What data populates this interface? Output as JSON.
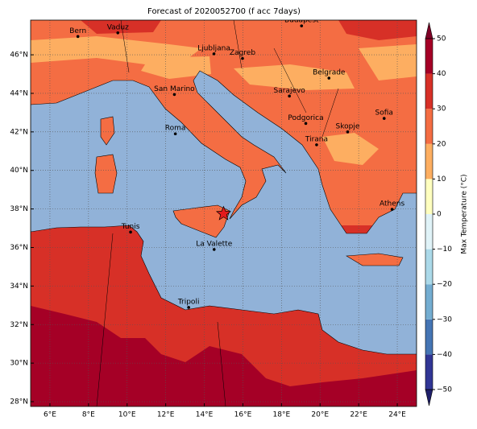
{
  "title": "Forecast of 2020052700 (f acc 7days)",
  "map": {
    "lonlim": [
      5,
      25
    ],
    "latlim": [
      27.75,
      47.8
    ],
    "lon_ticks": [
      {
        "value": 6,
        "label": "6°E"
      },
      {
        "value": 8,
        "label": "8°E"
      },
      {
        "value": 10,
        "label": "10°E"
      },
      {
        "value": 12,
        "label": "12°E"
      },
      {
        "value": 14,
        "label": "14°E"
      },
      {
        "value": 16,
        "label": "16°E"
      },
      {
        "value": 18,
        "label": "18°E"
      },
      {
        "value": 20,
        "label": "20°E"
      },
      {
        "value": 22,
        "label": "22°E"
      },
      {
        "value": 24,
        "label": "24°E"
      }
    ],
    "lat_ticks": [
      {
        "value": 28,
        "label": "28°N"
      },
      {
        "value": 30,
        "label": "30°N"
      },
      {
        "value": 32,
        "label": "32°N"
      },
      {
        "value": 34,
        "label": "34°N"
      },
      {
        "value": 36,
        "label": "36°N"
      },
      {
        "value": 38,
        "label": "38°N"
      },
      {
        "value": 40,
        "label": "40°N"
      },
      {
        "value": 42,
        "label": "42°N"
      },
      {
        "value": 44,
        "label": "44°N"
      },
      {
        "value": 46,
        "label": "46°N"
      }
    ],
    "cities": [
      {
        "name": "Bern",
        "lon": 7.45,
        "lat": 46.95
      },
      {
        "name": "Vaduz",
        "lon": 9.52,
        "lat": 47.14
      },
      {
        "name": "Budapest",
        "lon": 19.04,
        "lat": 47.5
      },
      {
        "name": "Ljubljana",
        "lon": 14.5,
        "lat": 46.05
      },
      {
        "name": "Zagreb",
        "lon": 15.98,
        "lat": 45.81
      },
      {
        "name": "Belgrade",
        "lon": 20.46,
        "lat": 44.79
      },
      {
        "name": "San Marino",
        "lon": 12.45,
        "lat": 43.94
      },
      {
        "name": "Sarajevo",
        "lon": 18.41,
        "lat": 43.86
      },
      {
        "name": "Sofia",
        "lon": 23.32,
        "lat": 42.7
      },
      {
        "name": "Podgorica",
        "lon": 19.26,
        "lat": 42.44
      },
      {
        "name": "Skopje",
        "lon": 21.43,
        "lat": 42.0
      },
      {
        "name": "Roma",
        "lon": 12.5,
        "lat": 41.9
      },
      {
        "name": "Tirana",
        "lon": 19.82,
        "lat": 41.33
      },
      {
        "name": "Athens",
        "lon": 23.73,
        "lat": 37.98
      },
      {
        "name": "Tunis",
        "lon": 10.18,
        "lat": 36.8
      },
      {
        "name": "La Valette",
        "lon": 14.51,
        "lat": 35.9
      },
      {
        "name": "Tripoli",
        "lon": 13.19,
        "lat": 32.89
      }
    ],
    "marker": {
      "lon": 15.0,
      "lat": 37.75,
      "color": "#e41a1c"
    }
  },
  "colorbar": {
    "label": "Max Temperature (°C)",
    "ticks": [
      {
        "value": -50,
        "label": "−50"
      },
      {
        "value": -40,
        "label": "−40"
      },
      {
        "value": -30,
        "label": "−30"
      },
      {
        "value": -20,
        "label": "−20"
      },
      {
        "value": -10,
        "label": "−10"
      },
      0,
      10,
      20,
      30,
      40,
      50
    ],
    "colors": [
      "#313695",
      "#4575b4",
      "#74add1",
      "#abd9e9",
      "#e0f3f8",
      "#ffffbf",
      "#fdae61",
      "#f46d43",
      "#d73027",
      "#a50026"
    ],
    "under_color": "#1f1f6b",
    "over_color": "#800026"
  }
}
